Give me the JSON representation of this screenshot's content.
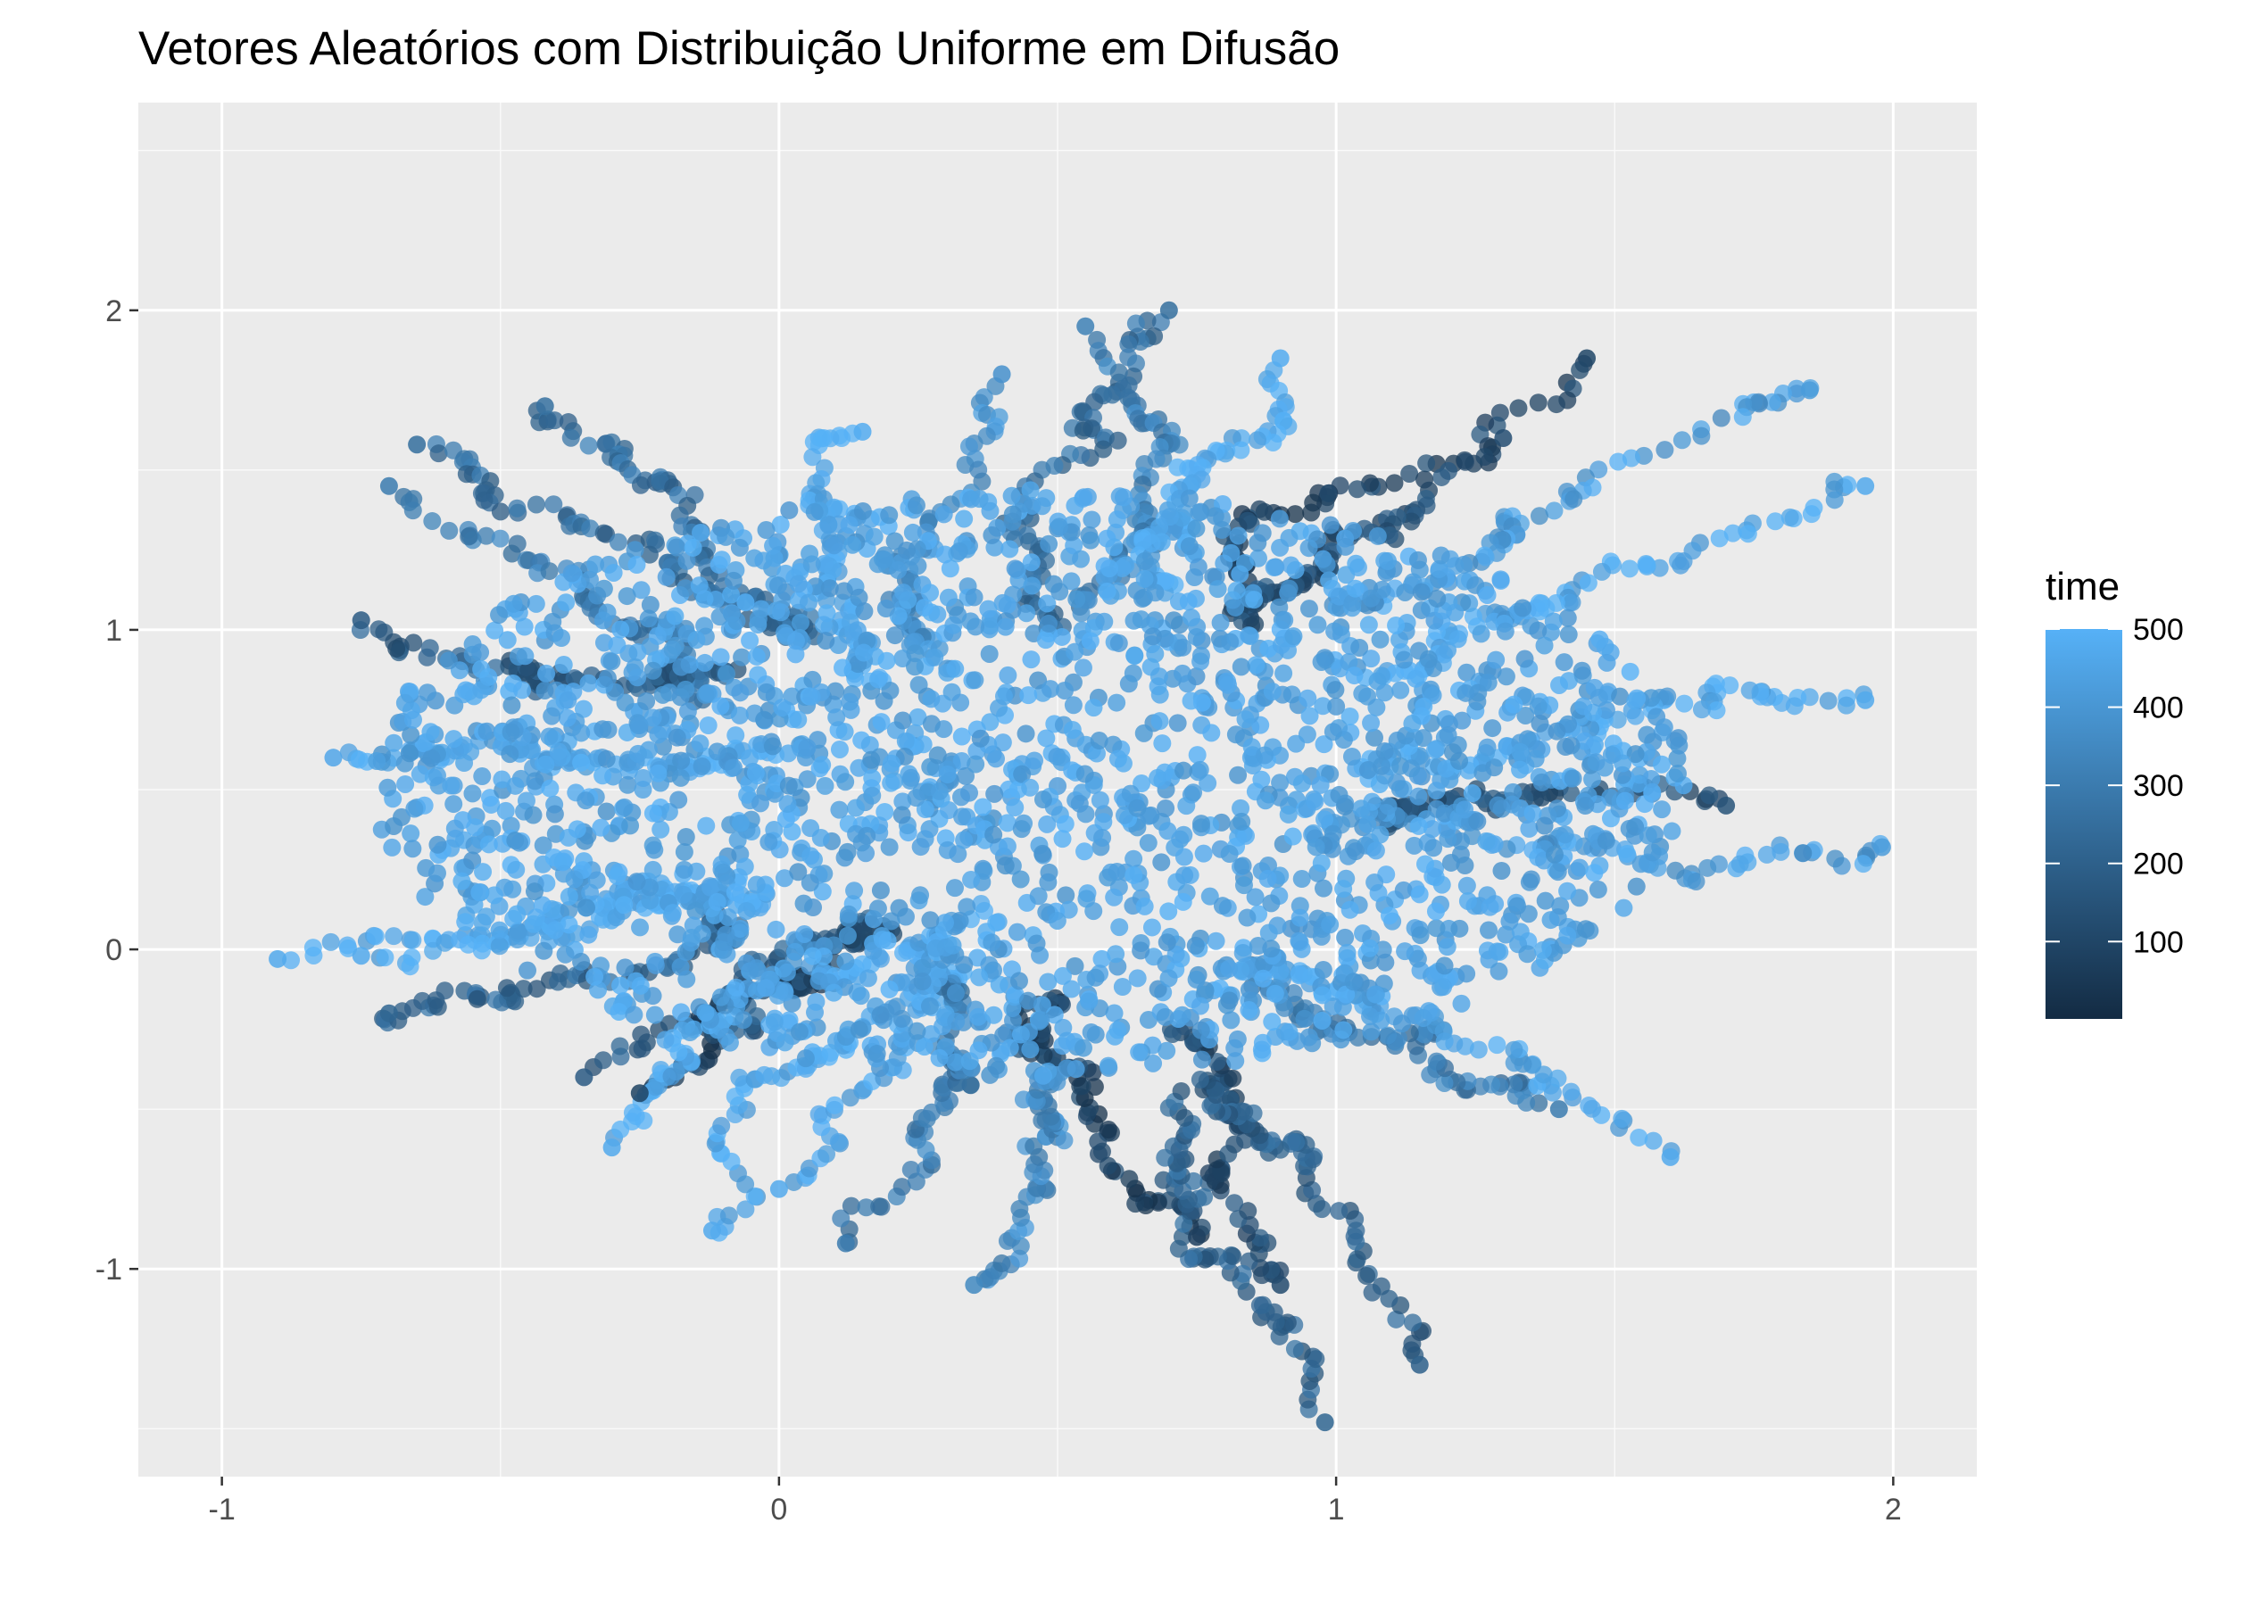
{
  "chart_data": {
    "type": "scatter",
    "title": "Vetores Aleatórios com Distribuição Uniforme em Difusão",
    "xlabel": "",
    "ylabel": "",
    "xlim": [
      -1.15,
      2.15
    ],
    "ylim": [
      -1.65,
      2.65
    ],
    "x_ticks": [
      -1,
      0,
      1,
      2
    ],
    "x_tick_labels": [
      "-1",
      "0",
      "1",
      "2"
    ],
    "y_ticks": [
      -1,
      0,
      1,
      2
    ],
    "y_tick_labels": [
      "-1",
      "0",
      "1",
      "2"
    ],
    "grid": true,
    "panel_background": "#ebebeb",
    "legend": {
      "title": "time",
      "placement": "right",
      "range": [
        1,
        500
      ],
      "breaks": [
        100,
        200,
        300,
        400,
        500
      ],
      "break_labels": [
        "100",
        "200",
        "300",
        "400",
        "500"
      ],
      "low_color": "#132b43",
      "high_color": "#56b1f7"
    },
    "series": [
      {
        "values": [
          {
            "x": -0.9,
            "y": -0.03,
            "time": 470
          },
          {
            "x": -0.75,
            "y": -0.02,
            "time": 470
          },
          {
            "x": -0.8,
            "y": 0.6,
            "time": 460
          },
          {
            "x": -0.7,
            "y": 1.45,
            "time": 300
          },
          {
            "x": -0.65,
            "y": 1.58,
            "time": 250
          },
          {
            "x": -0.42,
            "y": 1.7,
            "time": 260
          },
          {
            "x": -0.75,
            "y": 1.03,
            "time": 180
          },
          {
            "x": -0.7,
            "y": -0.2,
            "time": 220
          },
          {
            "x": -0.35,
            "y": -0.4,
            "time": 180
          },
          {
            "x": -0.25,
            "y": -0.45,
            "time": 90
          },
          {
            "x": -0.3,
            "y": -0.62,
            "time": 470
          },
          {
            "x": -0.12,
            "y": -0.88,
            "time": 470
          },
          {
            "x": 0.0,
            "y": -0.75,
            "time": 470
          },
          {
            "x": 0.12,
            "y": -0.92,
            "time": 300
          },
          {
            "x": 0.35,
            "y": -1.05,
            "time": 350
          },
          {
            "x": 0.75,
            "y": -0.9,
            "time": 80
          },
          {
            "x": 0.9,
            "y": -1.05,
            "time": 120
          },
          {
            "x": 1.15,
            "y": -1.3,
            "time": 200
          },
          {
            "x": 0.98,
            "y": -1.48,
            "time": 220
          },
          {
            "x": 1.4,
            "y": -0.5,
            "time": 300
          },
          {
            "x": 1.6,
            "y": -0.65,
            "time": 470
          },
          {
            "x": 1.7,
            "y": 0.45,
            "time": 150
          },
          {
            "x": 1.98,
            "y": 0.32,
            "time": 420
          },
          {
            "x": 1.95,
            "y": 0.78,
            "time": 470
          },
          {
            "x": 1.95,
            "y": 1.45,
            "time": 470
          },
          {
            "x": 1.85,
            "y": 1.75,
            "time": 420
          },
          {
            "x": 1.45,
            "y": 1.85,
            "time": 100
          },
          {
            "x": 1.3,
            "y": 1.6,
            "time": 130
          },
          {
            "x": 0.7,
            "y": 2.0,
            "time": 250
          },
          {
            "x": 0.55,
            "y": 1.95,
            "time": 320
          },
          {
            "x": 0.9,
            "y": 1.85,
            "time": 480
          },
          {
            "x": 0.4,
            "y": 1.8,
            "time": 380
          },
          {
            "x": 0.15,
            "y": 1.62,
            "time": 480
          }
        ]
      }
    ]
  }
}
